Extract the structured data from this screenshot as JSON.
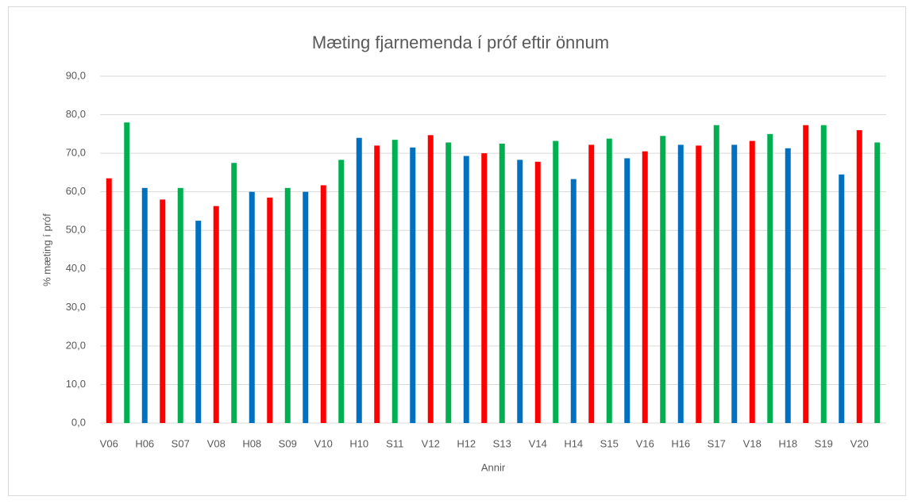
{
  "chart_data": {
    "type": "bar",
    "title": "Mæting fjarnemenda í próf eftir önnum",
    "x_label": "Annir",
    "y_label": "% mæting í próf",
    "categories": [
      "V06",
      null,
      "H06",
      null,
      "S07",
      null,
      "V08",
      null,
      "H08",
      null,
      "S09",
      null,
      "V10",
      null,
      "H10",
      null,
      "S11",
      null,
      "V12",
      null,
      "H12",
      null,
      "S13",
      null,
      "V14",
      null,
      "H14",
      null,
      "S15",
      null,
      "V16",
      null,
      "H16",
      null,
      "S17",
      null,
      "V18",
      null,
      "H18",
      null,
      "S19",
      null,
      "V20",
      null
    ],
    "values": [
      63.5,
      78,
      61,
      58,
      61,
      52.5,
      56.3,
      67.5,
      60,
      58.5,
      61,
      60,
      61.7,
      68.3,
      74,
      72,
      73.5,
      71.5,
      74.7,
      72.8,
      69.3,
      70,
      72.5,
      68.3,
      67.8,
      73.2,
      63.3,
      72.2,
      73.8,
      68.7,
      70.5,
      74.5,
      72.2,
      72,
      77.3,
      72.2,
      73.2,
      75,
      71.3,
      77.3,
      77.3,
      64.5,
      76,
      72.8
    ],
    "colors": [
      "#ff0000",
      "#00b050",
      "#0070c0",
      "#ff0000",
      "#00b050",
      "#0070c0",
      "#ff0000",
      "#00b050",
      "#0070c0",
      "#ff0000",
      "#00b050",
      "#0070c0",
      "#ff0000",
      "#00b050",
      "#0070c0",
      "#ff0000",
      "#00b050",
      "#0070c0",
      "#ff0000",
      "#00b050",
      "#0070c0",
      "#ff0000",
      "#00b050",
      "#0070c0",
      "#ff0000",
      "#00b050",
      "#0070c0",
      "#ff0000",
      "#00b050",
      "#0070c0",
      "#ff0000",
      "#00b050",
      "#0070c0",
      "#ff0000",
      "#00b050",
      "#0070c0",
      "#ff0000",
      "#00b050",
      "#0070c0",
      "#ff0000",
      "#00b050",
      "#0070c0",
      "#ff0000",
      "#00b050"
    ],
    "ylim": [
      0,
      90
    ],
    "yticks": [
      {
        "value": 0,
        "label": "0,0"
      },
      {
        "value": 10,
        "label": "10,0"
      },
      {
        "value": 20,
        "label": "20,0"
      },
      {
        "value": 30,
        "label": "30,0"
      },
      {
        "value": 40,
        "label": "40,0"
      },
      {
        "value": 50,
        "label": "50,0"
      },
      {
        "value": 60,
        "label": "60,0"
      },
      {
        "value": 70,
        "label": "70,0"
      },
      {
        "value": 80,
        "label": "80,0"
      },
      {
        "value": 90,
        "label": "90,0"
      }
    ],
    "grid": true
  }
}
